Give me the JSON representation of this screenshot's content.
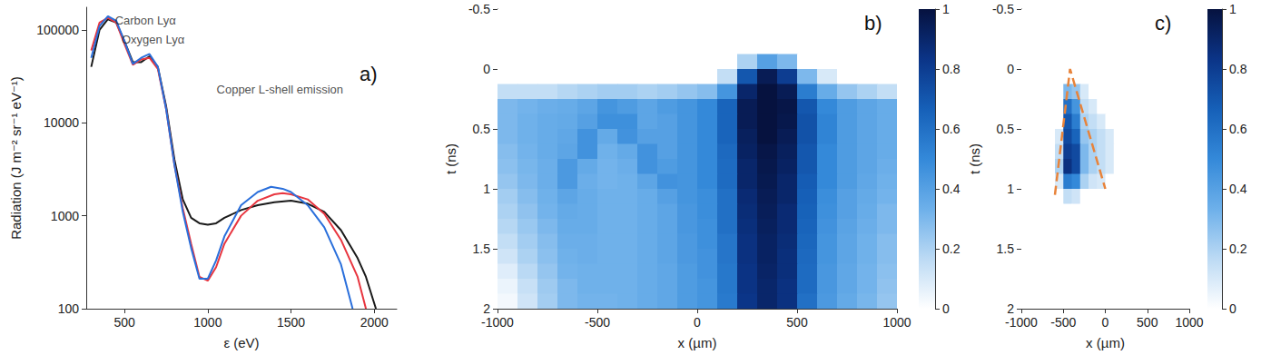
{
  "chart_data": [
    {
      "type": "line",
      "panel_label": "a)",
      "x_label": "ε (eV)",
      "y_label": "Radiation (J m⁻² sr⁻¹ eV⁻¹)",
      "xlim": [
        270,
        2135
      ],
      "xticks": [
        500,
        1000,
        1500,
        2000
      ],
      "ylim": [
        100,
        175000
      ],
      "yticks": [
        100,
        1000,
        10000,
        100000
      ],
      "log": "y",
      "grid": false,
      "series": [
        {
          "color": "#1a1a1a",
          "x": [
            300,
            350,
            400,
            450,
            500,
            550,
            600,
            650,
            700,
            750,
            800,
            850,
            900,
            950,
            1000,
            1050,
            1100,
            1200,
            1300,
            1400,
            1500,
            1600,
            1700,
            1800,
            1900,
            1950,
            2010
          ],
          "values": [
            40000,
            100000,
            130000,
            120000,
            75000,
            45000,
            45000,
            52000,
            40000,
            15000,
            4000,
            1500,
            950,
            830,
            800,
            830,
            950,
            1150,
            1300,
            1400,
            1450,
            1350,
            1100,
            700,
            350,
            220,
            100
          ]
        },
        {
          "color": "#e8353f",
          "x": [
            300,
            350,
            400,
            450,
            500,
            550,
            600,
            650,
            700,
            750,
            800,
            850,
            900,
            950,
            1000,
            1050,
            1100,
            1200,
            1300,
            1400,
            1450,
            1500,
            1600,
            1700,
            1800,
            1900,
            1950
          ],
          "values": [
            60000,
            120000,
            135000,
            120000,
            70000,
            42000,
            48000,
            50000,
            38000,
            14000,
            3500,
            1200,
            500,
            220,
            200,
            280,
            500,
            1000,
            1450,
            1700,
            1750,
            1700,
            1500,
            1050,
            550,
            220,
            100
          ]
        },
        {
          "color": "#2a6fdb",
          "x": [
            300,
            350,
            400,
            450,
            500,
            550,
            600,
            650,
            700,
            750,
            800,
            850,
            900,
            950,
            1000,
            1050,
            1100,
            1200,
            1300,
            1380,
            1450,
            1500,
            1600,
            1700,
            1800,
            1870
          ],
          "values": [
            50000,
            110000,
            140000,
            125000,
            75000,
            43000,
            50000,
            55000,
            40000,
            14000,
            3500,
            1100,
            450,
            210,
            210,
            330,
            600,
            1300,
            1800,
            2050,
            1950,
            1800,
            1300,
            750,
            300,
            100
          ]
        }
      ],
      "annotations": [
        {
          "text": "Carbon Lyα",
          "x": 440,
          "y": 126000
        },
        {
          "text": "Oxygen Lyα",
          "x": 480,
          "y": 79000
        },
        {
          "text": "Copper L-shell emission",
          "x": 1050,
          "y": 23000
        }
      ]
    },
    {
      "type": "heatmap",
      "panel_label": "b)",
      "x_label": "x (µm)",
      "y_label": "t (ns)",
      "xlim": [
        -1000,
        1000
      ],
      "xticks": [
        -1000,
        -500,
        0,
        500,
        1000
      ],
      "ylim": [
        -0.5,
        2
      ],
      "yticks": [
        -0.5,
        0,
        0.5,
        1,
        1.5,
        2
      ],
      "grid": false,
      "x_edges": [
        -1000,
        -900,
        -800,
        -700,
        -600,
        -500,
        -400,
        -300,
        -200,
        -100,
        0,
        100,
        200,
        300,
        400,
        500,
        600,
        700,
        800,
        900,
        1000
      ],
      "y_edges": [
        -0.5,
        -0.375,
        -0.25,
        -0.125,
        0,
        0.125,
        0.25,
        0.375,
        0.5,
        0.625,
        0.75,
        0.875,
        1,
        1.125,
        1.25,
        1.375,
        1.5,
        1.625,
        1.75,
        1.875,
        2
      ],
      "cells": [
        [
          0,
          0,
          0,
          0,
          0,
          0,
          0,
          0,
          0,
          0,
          0,
          0,
          0,
          0,
          0,
          0,
          0,
          0,
          0,
          0
        ],
        [
          0,
          0,
          0,
          0,
          0,
          0,
          0,
          0,
          0,
          0,
          0,
          0,
          0,
          0,
          0,
          0,
          0,
          0,
          0,
          0
        ],
        [
          0,
          0,
          0,
          0,
          0,
          0,
          0,
          0,
          0,
          0,
          0,
          0,
          0,
          0,
          0,
          0,
          0,
          0,
          0,
          0
        ],
        [
          0,
          0,
          0,
          0,
          0,
          0,
          0,
          0,
          0,
          0,
          0,
          0,
          0.2,
          0.4,
          0.3,
          0,
          0,
          0,
          0,
          0
        ],
        [
          0,
          0,
          0,
          0,
          0,
          0,
          0,
          0,
          0,
          0,
          0,
          0.15,
          0.7,
          0.95,
          0.8,
          0.3,
          0.1,
          0,
          0,
          0
        ],
        [
          0.15,
          0.15,
          0.15,
          0.18,
          0.2,
          0.22,
          0.22,
          0.2,
          0.22,
          0.25,
          0.28,
          0.45,
          0.9,
          1,
          0.95,
          0.55,
          0.35,
          0.25,
          0.2,
          0.15
        ],
        [
          0.3,
          0.32,
          0.34,
          0.35,
          0.38,
          0.45,
          0.42,
          0.38,
          0.42,
          0.45,
          0.5,
          0.65,
          0.95,
          1,
          0.98,
          0.7,
          0.5,
          0.42,
          0.38,
          0.35
        ],
        [
          0.3,
          0.33,
          0.35,
          0.36,
          0.4,
          0.47,
          0.47,
          0.38,
          0.4,
          0.45,
          0.5,
          0.65,
          0.95,
          1,
          0.97,
          0.72,
          0.52,
          0.42,
          0.38,
          0.35
        ],
        [
          0.3,
          0.33,
          0.35,
          0.37,
          0.46,
          0.36,
          0.46,
          0.4,
          0.4,
          0.45,
          0.5,
          0.65,
          0.93,
          1,
          0.95,
          0.72,
          0.52,
          0.42,
          0.38,
          0.35
        ],
        [
          0.28,
          0.32,
          0.35,
          0.38,
          0.46,
          0.33,
          0.36,
          0.46,
          0.4,
          0.45,
          0.5,
          0.63,
          0.92,
          0.98,
          0.93,
          0.7,
          0.5,
          0.42,
          0.38,
          0.35
        ],
        [
          0.27,
          0.31,
          0.34,
          0.43,
          0.36,
          0.32,
          0.34,
          0.46,
          0.42,
          0.45,
          0.5,
          0.62,
          0.9,
          0.97,
          0.92,
          0.7,
          0.5,
          0.42,
          0.38,
          0.34
        ],
        [
          0.25,
          0.3,
          0.34,
          0.43,
          0.34,
          0.32,
          0.33,
          0.38,
          0.46,
          0.45,
          0.5,
          0.62,
          0.9,
          0.96,
          0.9,
          0.68,
          0.5,
          0.42,
          0.37,
          0.33
        ],
        [
          0.22,
          0.28,
          0.33,
          0.38,
          0.35,
          0.33,
          0.33,
          0.35,
          0.4,
          0.45,
          0.48,
          0.6,
          0.88,
          0.95,
          0.9,
          0.67,
          0.48,
          0.4,
          0.36,
          0.32
        ],
        [
          0.2,
          0.26,
          0.32,
          0.36,
          0.35,
          0.33,
          0.33,
          0.35,
          0.38,
          0.44,
          0.48,
          0.6,
          0.87,
          0.94,
          0.88,
          0.66,
          0.47,
          0.4,
          0.35,
          0.3
        ],
        [
          0.18,
          0.24,
          0.3,
          0.35,
          0.35,
          0.33,
          0.33,
          0.35,
          0.38,
          0.44,
          0.47,
          0.6,
          0.86,
          0.93,
          0.88,
          0.65,
          0.46,
          0.39,
          0.34,
          0.3
        ],
        [
          0.15,
          0.22,
          0.28,
          0.34,
          0.34,
          0.33,
          0.33,
          0.35,
          0.38,
          0.43,
          0.47,
          0.58,
          0.85,
          0.92,
          0.87,
          0.64,
          0.45,
          0.38,
          0.33,
          0.28
        ],
        [
          0.12,
          0.2,
          0.27,
          0.33,
          0.34,
          0.33,
          0.33,
          0.35,
          0.38,
          0.43,
          0.46,
          0.58,
          0.85,
          0.92,
          0.86,
          0.63,
          0.45,
          0.38,
          0.33,
          0.28
        ],
        [
          0.08,
          0.17,
          0.25,
          0.32,
          0.33,
          0.33,
          0.33,
          0.35,
          0.37,
          0.42,
          0.46,
          0.57,
          0.84,
          0.91,
          0.86,
          0.62,
          0.44,
          0.37,
          0.32,
          0.27
        ],
        [
          0.05,
          0.14,
          0.23,
          0.3,
          0.33,
          0.33,
          0.33,
          0.35,
          0.37,
          0.42,
          0.45,
          0.57,
          0.84,
          0.9,
          0.85,
          0.62,
          0.44,
          0.37,
          0.32,
          0.26
        ],
        [
          0.03,
          0.12,
          0.22,
          0.3,
          0.32,
          0.32,
          0.33,
          0.35,
          0.37,
          0.42,
          0.45,
          0.56,
          0.83,
          0.9,
          0.85,
          0.6,
          0.43,
          0.36,
          0.31,
          0.25
        ]
      ],
      "colorbar": {
        "range": [
          0,
          1
        ],
        "ticks": [
          0,
          0.2,
          0.4,
          0.6,
          0.8,
          1
        ]
      }
    },
    {
      "type": "heatmap",
      "panel_label": "c)",
      "x_label": "x (µm)",
      "y_label": "t (ns)",
      "xlim": [
        -1000,
        1000
      ],
      "xticks": [
        -1000,
        -500,
        0,
        500,
        1000
      ],
      "ylim": [
        -0.5,
        2
      ],
      "yticks": [
        -0.5,
        0,
        0.5,
        1,
        1.5,
        2
      ],
      "grid": false,
      "x_edges": [
        -1000,
        -900,
        -800,
        -700,
        -600,
        -500,
        -400,
        -300,
        -200,
        -100,
        0,
        100,
        200,
        300,
        400,
        500,
        600,
        700,
        800,
        900,
        1000
      ],
      "y_edges": [
        -0.5,
        -0.375,
        -0.25,
        -0.125,
        0,
        0.125,
        0.25,
        0.375,
        0.5,
        0.625,
        0.75,
        0.875,
        1,
        1.125,
        1.25,
        1.375,
        1.5,
        1.625,
        1.75,
        1.875,
        2
      ],
      "cells": [
        [
          0,
          0,
          0,
          0,
          0,
          0,
          0,
          0,
          0,
          0,
          0,
          0,
          0,
          0,
          0,
          0,
          0,
          0,
          0,
          0
        ],
        [
          0,
          0,
          0,
          0,
          0,
          0,
          0,
          0,
          0,
          0,
          0,
          0,
          0,
          0,
          0,
          0,
          0,
          0,
          0,
          0
        ],
        [
          0,
          0,
          0,
          0,
          0,
          0,
          0,
          0,
          0,
          0,
          0,
          0,
          0,
          0,
          0,
          0,
          0,
          0,
          0,
          0
        ],
        [
          0,
          0,
          0,
          0,
          0,
          0,
          0,
          0,
          0,
          0,
          0,
          0,
          0,
          0,
          0,
          0,
          0,
          0,
          0,
          0
        ],
        [
          0,
          0,
          0,
          0,
          0,
          0,
          0,
          0,
          0,
          0,
          0,
          0,
          0,
          0,
          0,
          0,
          0,
          0,
          0,
          0
        ],
        [
          0,
          0,
          0,
          0,
          0,
          0.3,
          0.25,
          0.1,
          0,
          0,
          0,
          0,
          0,
          0,
          0,
          0,
          0,
          0,
          0,
          0
        ],
        [
          0,
          0,
          0,
          0,
          0,
          0.6,
          0.45,
          0.15,
          0.1,
          0,
          0,
          0,
          0,
          0,
          0,
          0,
          0,
          0,
          0,
          0
        ],
        [
          0,
          0,
          0,
          0,
          0,
          0.7,
          0.55,
          0.2,
          0.15,
          0.1,
          0,
          0,
          0,
          0,
          0,
          0,
          0,
          0,
          0,
          0
        ],
        [
          0,
          0,
          0,
          0,
          0.1,
          0.75,
          0.65,
          0.25,
          0.2,
          0.15,
          0.1,
          0,
          0,
          0,
          0,
          0,
          0,
          0,
          0,
          0
        ],
        [
          0,
          0,
          0,
          0,
          0.15,
          0.8,
          0.75,
          0.3,
          0.2,
          0.15,
          0.1,
          0,
          0,
          0,
          0,
          0,
          0,
          0,
          0,
          0
        ],
        [
          0,
          0,
          0,
          0,
          0.2,
          0.85,
          0.75,
          0.3,
          0.2,
          0.15,
          0.1,
          0,
          0,
          0,
          0,
          0,
          0,
          0,
          0,
          0
        ],
        [
          0,
          0,
          0,
          0,
          0.1,
          0.55,
          0.5,
          0.2,
          0.12,
          0.1,
          0,
          0,
          0,
          0,
          0,
          0,
          0,
          0,
          0,
          0
        ],
        [
          0,
          0,
          0,
          0,
          0,
          0.15,
          0.12,
          0,
          0,
          0,
          0,
          0,
          0,
          0,
          0,
          0,
          0,
          0,
          0,
          0
        ],
        [
          0,
          0,
          0,
          0,
          0,
          0,
          0,
          0,
          0,
          0,
          0,
          0,
          0,
          0,
          0,
          0,
          0,
          0,
          0,
          0
        ],
        [
          0,
          0,
          0,
          0,
          0,
          0,
          0,
          0,
          0,
          0,
          0,
          0,
          0,
          0,
          0,
          0,
          0,
          0,
          0,
          0
        ],
        [
          0,
          0,
          0,
          0,
          0,
          0,
          0,
          0,
          0,
          0,
          0,
          0,
          0,
          0,
          0,
          0,
          0,
          0,
          0,
          0
        ],
        [
          0,
          0,
          0,
          0,
          0,
          0,
          0,
          0,
          0,
          0,
          0,
          0,
          0,
          0,
          0,
          0,
          0,
          0,
          0,
          0
        ],
        [
          0,
          0,
          0,
          0,
          0,
          0,
          0,
          0,
          0,
          0,
          0,
          0,
          0,
          0,
          0,
          0,
          0,
          0,
          0,
          0
        ],
        [
          0,
          0,
          0,
          0,
          0,
          0,
          0,
          0,
          0,
          0,
          0,
          0,
          0,
          0,
          0,
          0,
          0,
          0,
          0,
          0
        ],
        [
          0,
          0,
          0,
          0,
          0,
          0,
          0,
          0,
          0,
          0,
          0,
          0,
          0,
          0,
          0,
          0,
          0,
          0,
          0,
          0
        ]
      ],
      "colorbar": {
        "range": [
          0,
          1
        ],
        "ticks": [
          0,
          0.2,
          0.4,
          0.6,
          0.8,
          1
        ]
      },
      "lines": [
        {
          "color": "#e8833a",
          "line_style": "dashed",
          "x": [
            -600,
            -420,
            0
          ],
          "y": [
            1.05,
            0,
            1.0
          ]
        }
      ]
    }
  ]
}
